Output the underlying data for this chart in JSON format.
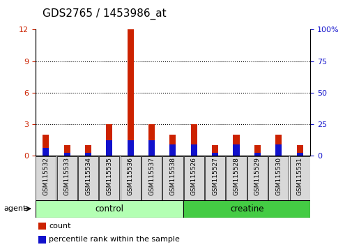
{
  "title": "GDS2765 / 1453986_at",
  "samples": [
    "GSM115532",
    "GSM115533",
    "GSM115534",
    "GSM115535",
    "GSM115536",
    "GSM115537",
    "GSM115538",
    "GSM115526",
    "GSM115527",
    "GSM115528",
    "GSM115529",
    "GSM115530",
    "GSM115531"
  ],
  "count_values": [
    2.0,
    1.0,
    1.0,
    3.0,
    12.0,
    3.0,
    2.0,
    3.0,
    1.0,
    2.0,
    1.0,
    2.0,
    1.0
  ],
  "percentile_values": [
    6.0,
    2.0,
    2.0,
    12.0,
    12.0,
    12.0,
    9.0,
    9.0,
    2.0,
    9.0,
    2.0,
    9.0,
    2.0
  ],
  "groups": [
    {
      "label": "control",
      "start": 0,
      "end": 7,
      "color": "#b3ffb3"
    },
    {
      "label": "creatine",
      "start": 7,
      "end": 13,
      "color": "#44cc44"
    }
  ],
  "group_label": "agent",
  "bar_color_red": "#cc2200",
  "bar_color_blue": "#1111cc",
  "ylim_left": [
    0,
    12
  ],
  "ylim_right": [
    0,
    100
  ],
  "yticks_left": [
    0,
    3,
    6,
    9,
    12
  ],
  "yticks_right": [
    0,
    25,
    50,
    75,
    100
  ],
  "right_tick_labels": [
    "0",
    "25",
    "50",
    "75",
    "100%"
  ],
  "left_tick_color": "#cc2200",
  "right_tick_color": "#1111cc",
  "title_fontsize": 11,
  "legend_items": [
    {
      "label": "count",
      "color": "#cc2200"
    },
    {
      "label": "percentile rank within the sample",
      "color": "#1111cc"
    }
  ],
  "bar_width": 0.3,
  "tick_bg_color": "#d8d8d8",
  "plot_bg_color": "#ffffff"
}
